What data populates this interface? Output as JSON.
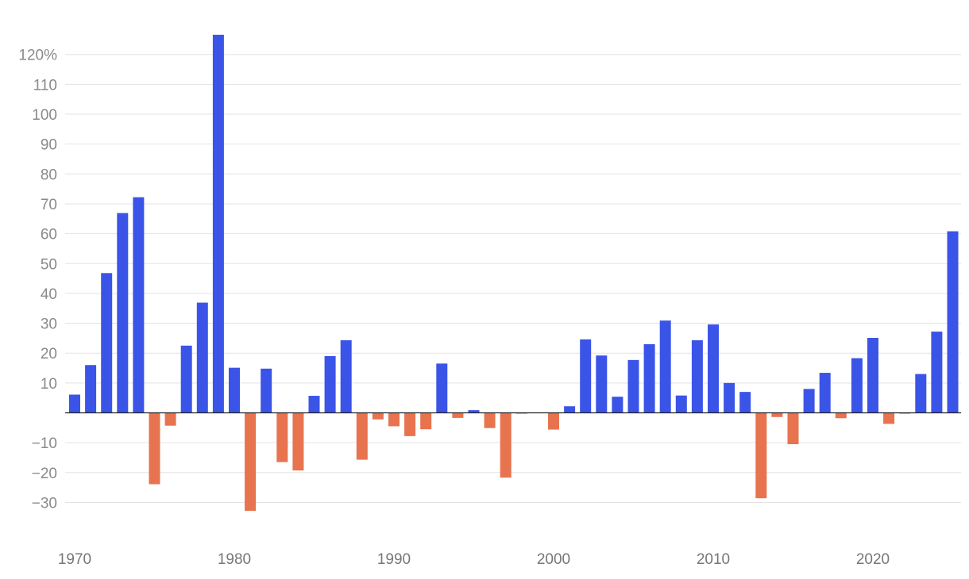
{
  "colors": {
    "positive": "#3b54e8",
    "negative": "#e8734f"
  },
  "chart_data": {
    "type": "bar",
    "title": "",
    "xlabel": "",
    "ylabel": "",
    "ylim": [
      -40,
      125
    ],
    "grid": true,
    "legend": "none",
    "yticks": [
      {
        "value": 120,
        "label": "120%"
      },
      {
        "value": 110,
        "label": "110"
      },
      {
        "value": 100,
        "label": "100"
      },
      {
        "value": 90,
        "label": "90"
      },
      {
        "value": 80,
        "label": "80"
      },
      {
        "value": 70,
        "label": "70"
      },
      {
        "value": 60,
        "label": "60"
      },
      {
        "value": 50,
        "label": "50"
      },
      {
        "value": 40,
        "label": "40"
      },
      {
        "value": 30,
        "label": "30"
      },
      {
        "value": 20,
        "label": "20"
      },
      {
        "value": 10,
        "label": "10"
      },
      {
        "value": -10,
        "label": "−10"
      },
      {
        "value": -20,
        "label": "−20"
      },
      {
        "value": -30,
        "label": "−30"
      }
    ],
    "xticks": [
      {
        "value": 1970,
        "label": "1970"
      },
      {
        "value": 1980,
        "label": "1980"
      },
      {
        "value": 1990,
        "label": "1990"
      },
      {
        "value": 2000,
        "label": "2000"
      },
      {
        "value": 2010,
        "label": "2010"
      },
      {
        "value": 2020,
        "label": "2020"
      }
    ],
    "x": [
      1970,
      1971,
      1972,
      1973,
      1974,
      1975,
      1976,
      1977,
      1978,
      1979,
      1980,
      1981,
      1982,
      1983,
      1984,
      1985,
      1986,
      1987,
      1988,
      1989,
      1990,
      1991,
      1992,
      1993,
      1994,
      1995,
      1996,
      1997,
      1998,
      1999,
      2000,
      2001,
      2002,
      2003,
      2004,
      2005,
      2006,
      2007,
      2008,
      2009,
      2010,
      2011,
      2012,
      2013,
      2014,
      2015,
      2016,
      2017,
      2018,
      2019,
      2020,
      2021,
      2022,
      2023,
      2024,
      2025
    ],
    "values": [
      6.1,
      16,
      46.8,
      66.9,
      72.2,
      -23.9,
      -4.3,
      22.5,
      36.9,
      126.6,
      15.1,
      -32.8,
      14.8,
      -16.5,
      -19.3,
      5.7,
      19,
      24.3,
      -15.7,
      -2.2,
      -4.5,
      -7.8,
      -5.5,
      16.5,
      -1.7,
      0.9,
      -5.1,
      -21.7,
      -0.3,
      0,
      -5.6,
      2.2,
      24.6,
      19.2,
      5.4,
      17.7,
      23,
      30.9,
      5.8,
      24.3,
      29.6,
      10,
      7,
      -28.6,
      -1.4,
      -10.5,
      8,
      13.4,
      -1.8,
      18.3,
      25.1,
      -3.7,
      -0.3,
      13,
      27.2,
      60.8
    ]
  }
}
